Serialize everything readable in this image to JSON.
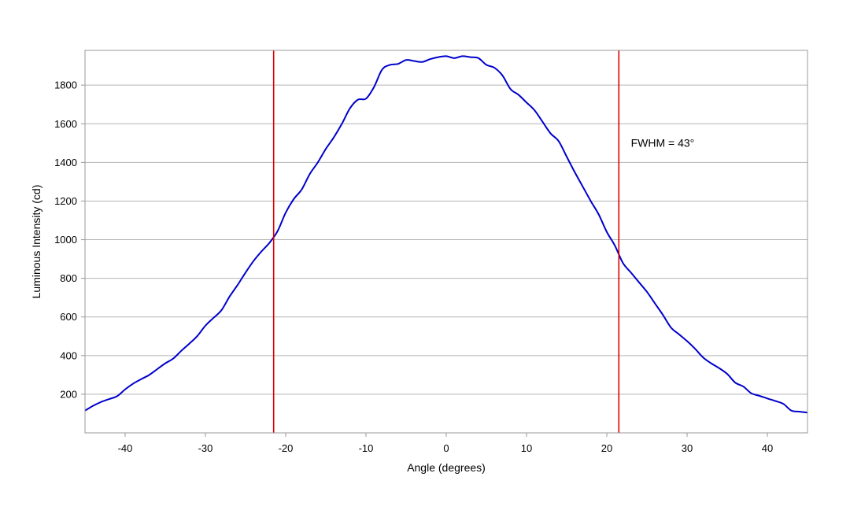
{
  "chart_data": {
    "type": "line",
    "title": "",
    "xlabel": "Angle (degrees)",
    "ylabel": "Luminous Intensity (cd)",
    "xlim": [
      -45,
      45
    ],
    "ylim": [
      0,
      1980
    ],
    "x_ticks": [
      -40,
      -30,
      -20,
      -10,
      0,
      10,
      20,
      30,
      40
    ],
    "y_ticks": [
      200,
      400,
      600,
      800,
      1000,
      1200,
      1400,
      1600,
      1800
    ],
    "grid": {
      "horizontal": true,
      "vertical": false
    },
    "legend": "none",
    "colors": {
      "series": "#0000cc",
      "markers": "#dd0000",
      "grid": "#b4b4b4",
      "frame": "#999999"
    },
    "series": [
      {
        "x": [
          -45,
          -44,
          -43,
          -42,
          -41,
          -40,
          -39,
          -38,
          -37,
          -36,
          -35,
          -34,
          -33,
          -32,
          -31,
          -30,
          -29,
          -28,
          -27,
          -26,
          -25,
          -24,
          -23,
          -22,
          -21,
          -20,
          -19,
          -18,
          -17,
          -16,
          -15,
          -14,
          -13,
          -12,
          -11,
          -10,
          -9,
          -8,
          -7,
          -6,
          -5,
          -4,
          -3,
          -2,
          -1,
          0,
          1,
          2,
          3,
          4,
          5,
          6,
          7,
          8,
          9,
          10,
          11,
          12,
          13,
          14,
          15,
          16,
          17,
          18,
          19,
          20,
          21,
          22,
          23,
          24,
          25,
          26,
          27,
          28,
          29,
          30,
          31,
          32,
          33,
          34,
          35,
          36,
          37,
          38,
          39,
          40,
          41,
          42,
          43,
          44,
          45
        ],
        "y": [
          115,
          140,
          160,
          175,
          190,
          225,
          255,
          278,
          300,
          330,
          360,
          385,
          425,
          462,
          502,
          555,
          595,
          635,
          705,
          765,
          830,
          890,
          940,
          985,
          1045,
          1140,
          1210,
          1260,
          1340,
          1400,
          1470,
          1530,
          1600,
          1680,
          1725,
          1730,
          1790,
          1880,
          1905,
          1910,
          1930,
          1925,
          1920,
          1935,
          1945,
          1950,
          1940,
          1950,
          1945,
          1940,
          1905,
          1890,
          1850,
          1780,
          1750,
          1710,
          1670,
          1610,
          1550,
          1510,
          1430,
          1350,
          1275,
          1200,
          1130,
          1040,
          970,
          880,
          830,
          780,
          730,
          670,
          610,
          545,
          510,
          475,
          435,
          390,
          360,
          335,
          305,
          260,
          240,
          205,
          192,
          178,
          165,
          150,
          115,
          110,
          105
        ]
      }
    ],
    "markers": [
      {
        "x": -21.5
      },
      {
        "x": 21.5
      }
    ],
    "annotations": [
      {
        "text": "FWHM = 43°",
        "x": 23,
        "y": 1480
      }
    ]
  }
}
